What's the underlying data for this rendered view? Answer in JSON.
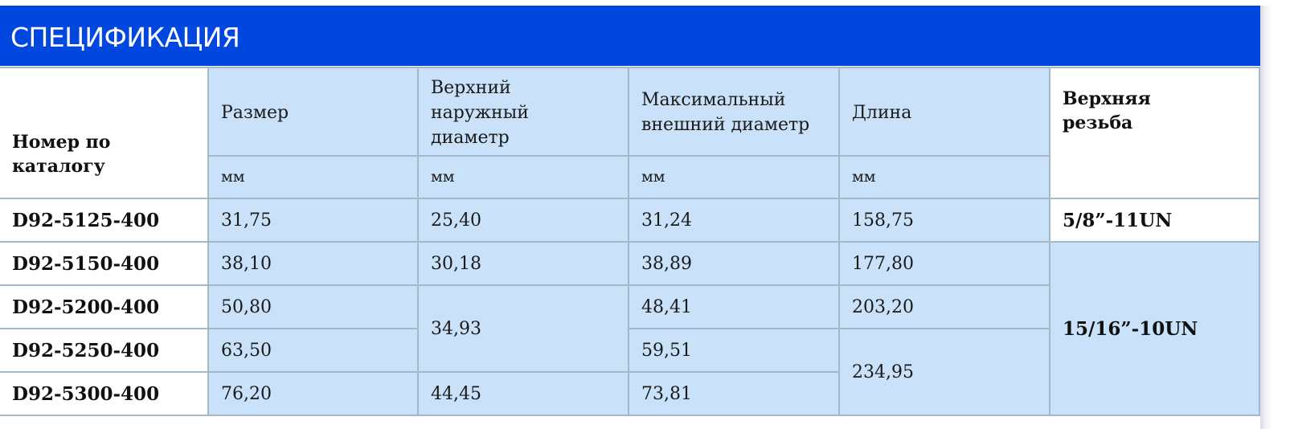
{
  "header": {
    "title": "СПЕЦИФИКАЦИЯ"
  },
  "colors": {
    "header_bg": "#0047e0",
    "cell_bg": "#c9e2f9",
    "grid": "#a6b8c6"
  },
  "table": {
    "headers": {
      "catalog": "Номер по каталогу",
      "size": "Размер",
      "upper_od": "Верхний наружный диаметр",
      "max_od": "Максимальный внешний диаметр",
      "length": "Длина",
      "upper_thread": "Верхняя резьба"
    },
    "units": {
      "size": "мм",
      "upper_od": "мм",
      "max_od": "мм",
      "length": "мм"
    },
    "rows": [
      {
        "catalog": "D92-5125-400",
        "size": "31,75",
        "upper_od": "25,40",
        "max_od": "31,24",
        "length": "158,75",
        "upper_thread": "5/8”-11UN"
      },
      {
        "catalog": "D92-5150-400",
        "size": "38,10",
        "upper_od": "30,18",
        "max_od": "38,89",
        "length": "177,80",
        "upper_thread": "15/16”-10UN"
      },
      {
        "catalog": "D92-5200-400",
        "size": "50,80",
        "upper_od": "34,93",
        "max_od": "48,41",
        "length": "203,20"
      },
      {
        "catalog": "D92-5250-400",
        "size": "63,50",
        "max_od": "59,51",
        "length": "234,95"
      },
      {
        "catalog": "D92-5300-400",
        "size": "76,20",
        "upper_od": "44,45",
        "max_od": "73,81"
      }
    ]
  }
}
